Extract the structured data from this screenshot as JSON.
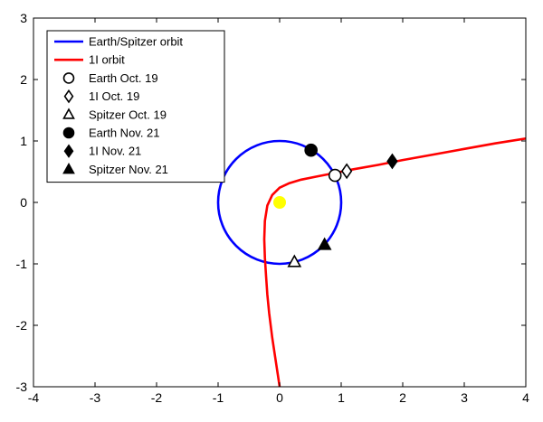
{
  "chart_data": {
    "type": "line",
    "title": "",
    "xlabel": "",
    "ylabel": "",
    "xlim": [
      -4,
      4
    ],
    "ylim": [
      -3,
      3
    ],
    "xticks": [
      -4,
      -3,
      -2,
      -1,
      0,
      1,
      2,
      3,
      4
    ],
    "yticks": [
      -3,
      -2,
      -1,
      0,
      1,
      2,
      3
    ],
    "grid": false,
    "legend_position": "top-left",
    "colors": {
      "earth_orbit": "#0000ff",
      "oumuamua_orbit": "#ff0000",
      "sun": "#ffff00",
      "markers": "#000000"
    },
    "series": [
      {
        "name": "Earth/Spitzer orbit",
        "kind": "line",
        "shape": "circle",
        "center": [
          0,
          0
        ],
        "radius": 1.0,
        "color": "#0000ff"
      },
      {
        "name": "1I orbit",
        "kind": "line",
        "color": "#ff0000",
        "x": [
          0.0,
          -0.06,
          -0.12,
          -0.17,
          -0.2,
          -0.22,
          -0.24,
          -0.25,
          -0.24,
          -0.2,
          -0.12,
          0.0,
          0.15,
          0.35,
          0.6,
          0.9,
          1.2,
          1.6,
          2.0,
          2.5,
          3.0,
          3.5,
          4.0
        ],
        "y": [
          -3.0,
          -2.6,
          -2.2,
          -1.8,
          -1.5,
          -1.2,
          -0.9,
          -0.6,
          -0.3,
          -0.05,
          0.12,
          0.24,
          0.31,
          0.37,
          0.42,
          0.48,
          0.54,
          0.61,
          0.69,
          0.78,
          0.87,
          0.96,
          1.04
        ]
      },
      {
        "name": "Earth Oct. 19",
        "kind": "marker",
        "marker": "circle-open",
        "x": [
          0.9
        ],
        "y": [
          0.44
        ]
      },
      {
        "name": "1I Oct. 19",
        "kind": "marker",
        "marker": "diamond-open",
        "x": [
          1.09
        ],
        "y": [
          0.51
        ]
      },
      {
        "name": "Spitzer Oct. 19",
        "kind": "marker",
        "marker": "triangle-open",
        "x": [
          0.24
        ],
        "y": [
          -0.97
        ]
      },
      {
        "name": "Earth Nov. 21",
        "kind": "marker",
        "marker": "circle-filled",
        "x": [
          0.51
        ],
        "y": [
          0.85
        ]
      },
      {
        "name": "1I Nov. 21",
        "kind": "marker",
        "marker": "diamond-filled",
        "x": [
          1.83
        ],
        "y": [
          0.67
        ]
      },
      {
        "name": "Spitzer Nov. 21",
        "kind": "marker",
        "marker": "triangle-filled",
        "x": [
          0.73
        ],
        "y": [
          -0.69
        ]
      }
    ],
    "annotations": [
      {
        "kind": "sun-dot",
        "x": 0.0,
        "y": 0.0,
        "color": "#ffff00"
      }
    ]
  }
}
